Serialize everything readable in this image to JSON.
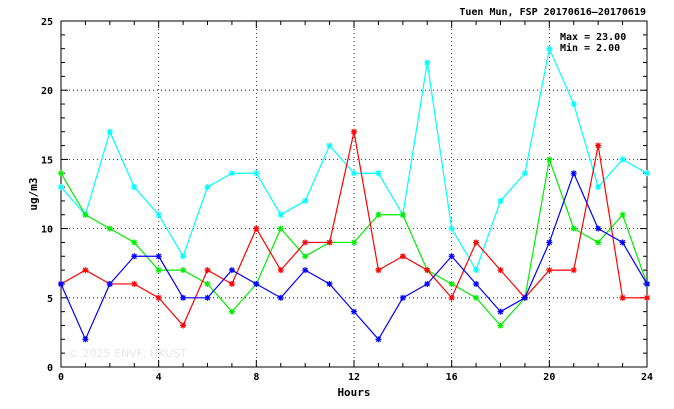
{
  "chart_data": {
    "type": "line",
    "title": "Tuen Mun, FSP 20170616–20170619",
    "xlabel": "Hours",
    "ylabel": "ug/m3",
    "xlim": [
      0,
      24
    ],
    "ylim": [
      0,
      25
    ],
    "x_ticks": [
      0,
      4,
      8,
      12,
      16,
      20,
      24
    ],
    "y_ticks": [
      0,
      5,
      10,
      15,
      20,
      25
    ],
    "grid": "dotted at x=4,8,12,16,20",
    "stats": {
      "max": "Max = 23.00",
      "min": "Min =  2.00"
    },
    "watermark": "© 2025  ENVF, HKUST",
    "x": [
      0,
      1,
      2,
      3,
      4,
      5,
      6,
      7,
      8,
      9,
      10,
      11,
      12,
      13,
      14,
      15,
      16,
      17,
      18,
      19,
      20,
      21,
      22,
      23,
      24
    ],
    "series": [
      {
        "color": "#00ffff",
        "values": [
          13,
          11,
          17,
          13,
          11,
          8,
          13,
          14,
          14,
          11,
          12,
          16,
          14,
          14,
          11,
          22,
          10,
          7,
          12,
          14,
          23,
          19,
          13,
          15,
          14
        ]
      },
      {
        "color": "#00ee00",
        "values": [
          14,
          11,
          10,
          9,
          7,
          7,
          6,
          4,
          6,
          10,
          8,
          9,
          9,
          11,
          11,
          7,
          6,
          5,
          3,
          5,
          15,
          10,
          9,
          11,
          6
        ]
      },
      {
        "color": "#ff0000",
        "values": [
          6,
          7,
          6,
          6,
          5,
          3,
          7,
          6,
          10,
          7,
          9,
          9,
          17,
          7,
          8,
          7,
          5,
          9,
          7,
          5,
          7,
          7,
          16,
          5,
          5
        ]
      },
      {
        "color": "#0000ff",
        "values": [
          6,
          2,
          6,
          8,
          8,
          5,
          5,
          7,
          6,
          5,
          7,
          6,
          4,
          2,
          5,
          6,
          8,
          6,
          4,
          5,
          9,
          14,
          10,
          9,
          6
        ]
      }
    ]
  }
}
